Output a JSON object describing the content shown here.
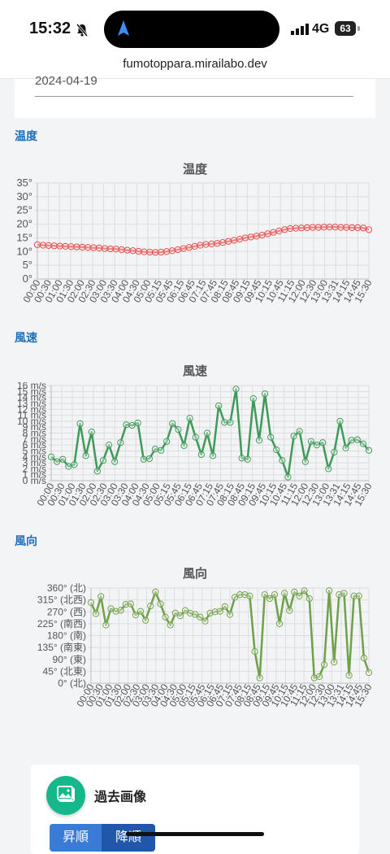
{
  "status": {
    "time": "15:32",
    "network": "4G",
    "battery": "63"
  },
  "browser": {
    "url": "fumotoppara.mirailabo.dev"
  },
  "top_card": {
    "date": "2024-04-19"
  },
  "sections": {
    "temperature": "温度",
    "wind_speed": "風速",
    "wind_direction": "風向"
  },
  "bottom": {
    "title": "過去画像",
    "asc_label": "昇順",
    "desc_label": "降順"
  },
  "chart_data": [
    {
      "type": "line",
      "title": "温度",
      "color": "#e74c4c",
      "ylim": [
        0,
        35
      ],
      "yticks": [
        0,
        5,
        10,
        15,
        20,
        25,
        30,
        35
      ],
      "ytick_labels": [
        "0°",
        "5°",
        "10°",
        "15°",
        "20°",
        "25°",
        "30°",
        "35°"
      ],
      "xtick_labels": [
        "00:00",
        "00:30",
        "01:00",
        "01:30",
        "02:00",
        "02:30",
        "03:00",
        "03:30",
        "04:00",
        "04:30",
        "05:00",
        "05:15",
        "05:45",
        "06:15",
        "06:45",
        "07:15",
        "07:45",
        "08:15",
        "08:45",
        "09:15",
        "09:45",
        "10:15",
        "10:45",
        "11:15",
        "12:00",
        "12:30",
        "13:00",
        "13:31",
        "14:15",
        "14:45",
        "15:30"
      ],
      "values": [
        12.5,
        12.3,
        12.2,
        12.1,
        12.0,
        11.9,
        11.8,
        11.7,
        11.6,
        11.5,
        11.4,
        11.3,
        11.1,
        11.0,
        10.9,
        10.7,
        10.5,
        10.3,
        10.1,
        9.9,
        9.8,
        9.7,
        9.8,
        10.0,
        10.3,
        10.7,
        11.1,
        11.5,
        11.9,
        12.3,
        12.6,
        12.8,
        13.0,
        13.3,
        13.7,
        14.1,
        14.5,
        15.0,
        15.3,
        15.6,
        16.0,
        16.5,
        17.0,
        17.5,
        18.0,
        18.4,
        18.5,
        18.6,
        18.7,
        18.8,
        18.8,
        18.9,
        18.9,
        18.9,
        18.8,
        18.8,
        18.7,
        18.7,
        18.6,
        18.0
      ]
    },
    {
      "type": "line",
      "title": "風速",
      "color": "#3f9a5a",
      "ylim": [
        0,
        16
      ],
      "yticks": [
        0,
        1,
        2,
        3,
        4,
        5,
        6,
        7,
        8,
        9,
        10,
        11,
        12,
        13,
        14,
        15,
        16
      ],
      "ytick_labels": [
        "0 m/s",
        "1 m/s",
        "2 m/s",
        "3 m/s",
        "4 m/s",
        "5 m/s",
        "6 m/s",
        "7 m/s",
        "8 m/s",
        "9 m/s",
        "10 m/s",
        "11 m/s",
        "12 m/s",
        "13 m/s",
        "14 m/s",
        "15 m/s",
        "16 m/s"
      ],
      "xtick_labels": [
        "00:00",
        "00:30",
        "01:00",
        "01:30",
        "02:00",
        "02:30",
        "03:00",
        "03:30",
        "04:00",
        "04:30",
        "05:00",
        "05:15",
        "05:45",
        "06:15",
        "06:45",
        "07:15",
        "07:45",
        "08:15",
        "08:45",
        "09:15",
        "09:45",
        "10:15",
        "10:45",
        "11:15",
        "12:00",
        "12:30",
        "13:00",
        "13:31",
        "14:15",
        "14:45",
        "15:30"
      ],
      "values": [
        4.0,
        3.2,
        3.6,
        2.4,
        2.7,
        9.6,
        4.2,
        8.2,
        1.6,
        3.4,
        6.0,
        3.2,
        6.4,
        9.4,
        9.3,
        9.7,
        3.6,
        3.7,
        5.3,
        5.1,
        6.6,
        9.6,
        8.6,
        5.9,
        10.5,
        7.3,
        4.4,
        8.0,
        4.2,
        12.6,
        9.8,
        9.8,
        15.4,
        3.8,
        3.6,
        13.8,
        6.8,
        14.6,
        7.3,
        5.2,
        3.4,
        0.6,
        7.5,
        8.3,
        3.2,
        6.6,
        6.0,
        6.4,
        2.0,
        4.8,
        10.0,
        5.5,
        6.8,
        6.9,
        6.2,
        5.1
      ]
    },
    {
      "type": "line",
      "title": "風向",
      "color": "#6fa04a",
      "ylim": [
        0,
        360
      ],
      "yticks": [
        0,
        45,
        90,
        135,
        180,
        225,
        270,
        315,
        360
      ],
      "ytick_labels": [
        "0° (北)",
        "45° (北東)",
        "90° (東)",
        "135° (南東)",
        "180° (南)",
        "225° (南西)",
        "270° (西)",
        "315° (北西)",
        "360° (北)"
      ],
      "xtick_labels": [
        "00:00",
        "00:30",
        "01:00",
        "01:30",
        "02:00",
        "02:30",
        "03:00",
        "03:30",
        "04:00",
        "04:30",
        "05:00",
        "05:15",
        "05:45",
        "06:15",
        "06:45",
        "07:15",
        "07:45",
        "08:15",
        "08:45",
        "09:15",
        "09:45",
        "10:15",
        "10:45",
        "11:15",
        "12:00",
        "12:30",
        "13:00",
        "13:31",
        "14:15",
        "14:45",
        "15:30"
      ],
      "values": [
        305,
        263,
        328,
        220,
        282,
        272,
        276,
        298,
        300,
        258,
        272,
        238,
        292,
        345,
        300,
        250,
        220,
        265,
        255,
        275,
        265,
        260,
        250,
        235,
        265,
        270,
        272,
        290,
        260,
        325,
        335,
        335,
        330,
        120,
        20,
        335,
        320,
        335,
        225,
        340,
        275,
        345,
        330,
        350,
        320,
        20,
        25,
        70,
        350,
        80,
        335,
        340,
        30,
        330,
        330,
        95,
        40
      ]
    }
  ]
}
